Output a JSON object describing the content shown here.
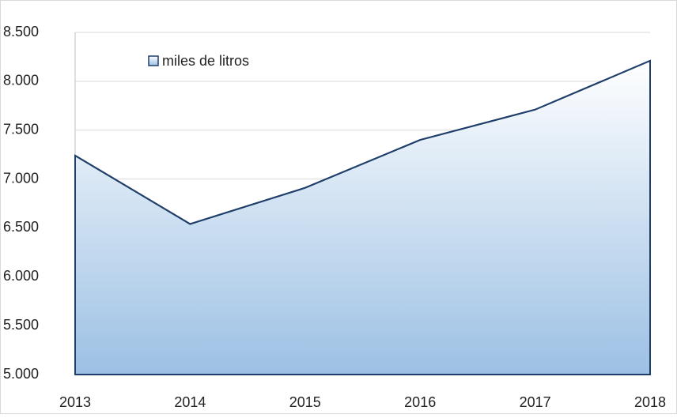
{
  "chart_data": {
    "type": "area",
    "categories": [
      "2013",
      "2014",
      "2015",
      "2016",
      "2017",
      "2018"
    ],
    "series": [
      {
        "name": "miles de litros",
        "color": "#1f3f6a",
        "values": [
          7240,
          6540,
          6910,
          7400,
          7710,
          8210
        ]
      }
    ],
    "ylim": [
      5000,
      8500
    ],
    "yticks": [
      {
        "value": 5000,
        "label": "5.000"
      },
      {
        "value": 5500,
        "label": "5.500"
      },
      {
        "value": 6000,
        "label": "6.000"
      },
      {
        "value": 6500,
        "label": "6.500"
      },
      {
        "value": 7000,
        "label": "7.000"
      },
      {
        "value": 7500,
        "label": "7.500"
      },
      {
        "value": 8000,
        "label": "8.000"
      },
      {
        "value": 8500,
        "label": "8.500"
      }
    ],
    "grid": true,
    "legend": "top-left"
  }
}
